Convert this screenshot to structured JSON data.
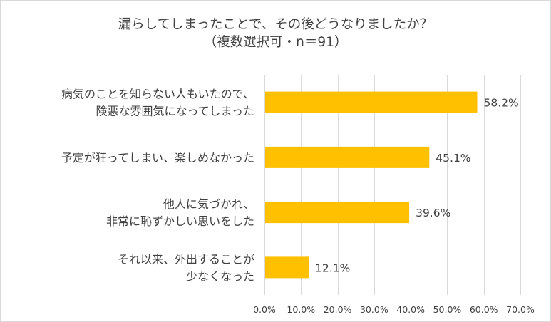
{
  "chart_data": {
    "type": "bar",
    "orientation": "horizontal",
    "title": [
      "漏らしてしまったことで、その後どうなりましたか？",
      "（複数選択可・n＝91）"
    ],
    "categories": [
      [
        "病気のことを知らない人もいたので、",
        "険悪な雰囲気になってしまった"
      ],
      [
        "予定が狂ってしまい、楽しめなかった"
      ],
      [
        "他人に気づかれ、",
        "非常に恥ずかしい思いをした"
      ],
      [
        "それ以来、外出することが",
        "少なくなった"
      ]
    ],
    "values": [
      58.2,
      45.1,
      39.6,
      12.1
    ],
    "value_labels": [
      "58.2%",
      "45.1%",
      "39.6%",
      "12.1%"
    ],
    "xlim": [
      0,
      70
    ],
    "x_ticks": [
      0,
      10,
      20,
      30,
      40,
      50,
      60,
      70
    ],
    "x_tick_labels": [
      "0.0%",
      "10.0%",
      "20.0%",
      "30.0%",
      "40.0%",
      "50.0%",
      "60.0%",
      "70.0%"
    ],
    "grid": "vertical",
    "legend": "none",
    "colors": {
      "bar": "#ffc000",
      "grid": "#d9d9d9",
      "text": "#404040"
    }
  }
}
